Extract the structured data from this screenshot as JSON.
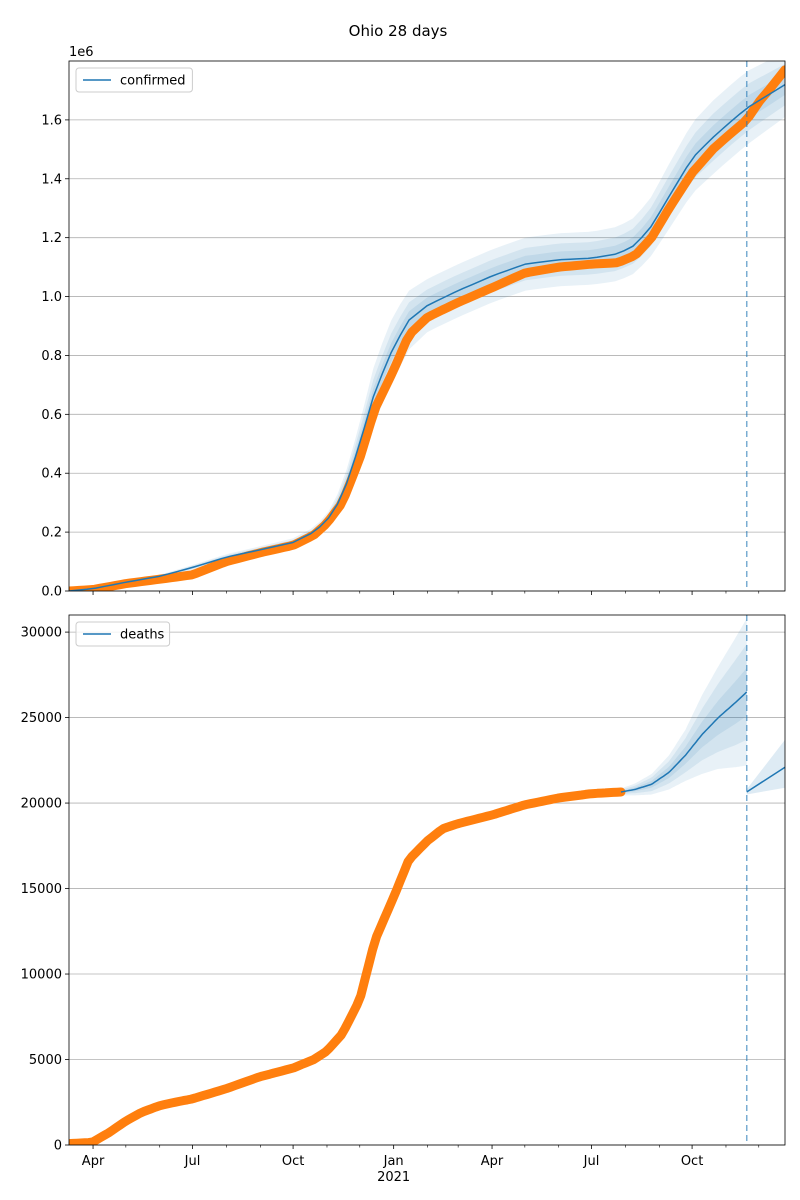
{
  "figure": {
    "title": "Ohio 28 days"
  },
  "chart_data": [
    {
      "type": "line",
      "panel": "top",
      "legend_label": "confirmed",
      "legend_position": "upper-left",
      "offset_text": "1e6",
      "grid": "horizontal",
      "xlim": [
        "2020-03-10",
        "2021-12-25"
      ],
      "ylim": [
        0,
        1800000
      ],
      "yticks": [
        0,
        200000,
        400000,
        600000,
        800000,
        1000000,
        1200000,
        1400000,
        1600000
      ],
      "ytick_labels": [
        "0.0",
        "0.2",
        "0.4",
        "0.6",
        "0.8",
        "1.0",
        "1.2",
        "1.4",
        "1.6"
      ],
      "forecast_start": "2021-11-20",
      "model_series": {
        "name": "confirmed",
        "color": "#1f77b4",
        "x": [
          "2020-03-10",
          "2020-04-01",
          "2020-05-01",
          "2020-06-01",
          "2020-07-01",
          "2020-08-01",
          "2020-09-01",
          "2020-10-01",
          "2020-10-20",
          "2020-11-01",
          "2020-11-15",
          "2020-12-01",
          "2020-12-15",
          "2021-01-01",
          "2021-01-15",
          "2021-02-01",
          "2021-03-01",
          "2021-04-01",
          "2021-05-01",
          "2021-06-01",
          "2021-07-01",
          "2021-07-25",
          "2021-08-10",
          "2021-08-25",
          "2021-09-10",
          "2021-10-01",
          "2021-10-20",
          "2021-11-01",
          "2021-11-20",
          "2021-12-25"
        ],
        "y": [
          0,
          8000,
          30000,
          50000,
          80000,
          115000,
          140000,
          165000,
          200000,
          240000,
          320000,
          500000,
          680000,
          830000,
          920000,
          970000,
          1020000,
          1070000,
          1110000,
          1125000,
          1130000,
          1145000,
          1175000,
          1240000,
          1340000,
          1470000,
          1540000,
          1580000,
          1640000,
          1720000
        ],
        "band_halfwidths": [
          [
            0,
            1000,
            3000,
            5000,
            8000,
            10000,
            12000,
            14000,
            16000,
            20000,
            40000,
            70000,
            100000,
            110000,
            100000,
            90000,
            90000,
            90000,
            90000,
            90000,
            90000,
            92000,
            95000,
            100000,
            110000,
            120000,
            125000,
            125000,
            125000,
            110000
          ],
          [
            0,
            500,
            1500,
            3000,
            5000,
            6000,
            7000,
            8000,
            9000,
            12000,
            25000,
            45000,
            60000,
            65000,
            60000,
            55000,
            55000,
            55000,
            55000,
            55000,
            55000,
            57000,
            60000,
            65000,
            70000,
            75000,
            80000,
            80000,
            80000,
            70000
          ],
          [
            0,
            200,
            700,
            1500,
            2500,
            3000,
            3500,
            4000,
            5000,
            6000,
            12000,
            22000,
            30000,
            32000,
            30000,
            28000,
            28000,
            28000,
            28000,
            28000,
            28000,
            29000,
            30000,
            33000,
            35000,
            38000,
            40000,
            40000,
            40000,
            35000
          ]
        ]
      },
      "observed_series": {
        "name": "observed",
        "color": "#ff7f0e",
        "x": [
          "2020-03-10",
          "2020-04-01",
          "2020-05-01",
          "2020-06-01",
          "2020-07-01",
          "2020-08-01",
          "2020-09-01",
          "2020-10-01",
          "2020-10-20",
          "2020-11-01",
          "2020-11-15",
          "2020-12-01",
          "2020-12-15",
          "2021-01-01",
          "2021-01-15",
          "2021-02-01",
          "2021-03-01",
          "2021-04-01",
          "2021-05-01",
          "2021-06-01",
          "2021-07-01",
          "2021-07-25",
          "2021-08-10",
          "2021-08-25",
          "2021-09-10",
          "2021-10-01",
          "2021-10-20",
          "2021-11-01",
          "2021-11-20",
          "2021-12-01",
          "2021-12-10",
          "2021-12-25"
        ],
        "y": [
          0,
          5000,
          25000,
          40000,
          55000,
          100000,
          130000,
          155000,
          190000,
          230000,
          300000,
          450000,
          620000,
          750000,
          870000,
          930000,
          980000,
          1030000,
          1080000,
          1100000,
          1110000,
          1115000,
          1140000,
          1200000,
          1300000,
          1420000,
          1500000,
          1540000,
          1600000,
          1660000,
          1700000,
          1770000
        ]
      }
    },
    {
      "type": "line",
      "panel": "bottom",
      "legend_label": "deaths",
      "legend_position": "upper-left",
      "grid": "horizontal",
      "xlim": [
        "2020-03-10",
        "2021-12-25"
      ],
      "ylim": [
        0,
        31000
      ],
      "yticks": [
        0,
        5000,
        10000,
        15000,
        20000,
        25000,
        30000
      ],
      "ytick_labels": [
        "0",
        "5000",
        "10000",
        "15000",
        "20000",
        "25000",
        "30000"
      ],
      "forecast_start": "2021-11-20",
      "model_series": {
        "name": "deaths",
        "color": "#1f77b4",
        "x": [
          "2021-07-28",
          "2021-08-10",
          "2021-08-25",
          "2021-09-10",
          "2021-09-25",
          "2021-10-10",
          "2021-10-25",
          "2021-11-10",
          "2021-11-20"
        ],
        "y": [
          20650,
          20800,
          21100,
          21800,
          22800,
          24000,
          25000,
          25900,
          26500
        ],
        "band_halfwidths": [
          [
            200,
            350,
            600,
            1000,
            1500,
            2300,
            3000,
            3800,
            4300
          ],
          [
            120,
            220,
            400,
            650,
            1000,
            1500,
            2000,
            2500,
            2800
          ],
          [
            60,
            110,
            200,
            330,
            500,
            750,
            1000,
            1250,
            1400
          ]
        ]
      },
      "restart_series": {
        "x": [
          "2021-11-20",
          "2021-12-25"
        ],
        "y": [
          20650,
          22100
        ],
        "band_upper": [
          20800,
          23700
        ],
        "band_lower": [
          20500,
          20900
        ]
      },
      "observed_series": {
        "name": "observed",
        "color": "#ff7f0e",
        "x": [
          "2020-03-10",
          "2020-03-31",
          "2020-04-15",
          "2020-05-01",
          "2020-05-15",
          "2020-06-01",
          "2020-06-15",
          "2020-07-01",
          "2020-08-01",
          "2020-09-01",
          "2020-10-01",
          "2020-10-20",
          "2020-11-01",
          "2020-11-15",
          "2020-12-01",
          "2020-12-15",
          "2021-01-01",
          "2021-01-15",
          "2021-02-01",
          "2021-02-15",
          "2021-03-01",
          "2021-04-01",
          "2021-05-01",
          "2021-06-01",
          "2021-07-01",
          "2021-07-28"
        ],
        "y": [
          80,
          150,
          700,
          1400,
          1900,
          2300,
          2500,
          2700,
          3300,
          4000,
          4500,
          5000,
          5500,
          6500,
          8500,
          12000,
          14500,
          16700,
          17800,
          18500,
          18800,
          19300,
          19900,
          20300,
          20550,
          20650
        ]
      }
    }
  ],
  "x_axis": {
    "tick_labels": [
      "Apr",
      "Jul",
      "Oct",
      "Jan",
      "Apr",
      "Jul",
      "Oct"
    ],
    "tick_dates": [
      "2020-04-01",
      "2020-07-01",
      "2020-10-01",
      "2021-01-01",
      "2021-04-01",
      "2021-07-01",
      "2021-10-01"
    ],
    "year_label": "2021",
    "year_label_date": "2021-01-01",
    "minor_dates": [
      "2020-05-01",
      "2020-06-01",
      "2020-08-01",
      "2020-09-01",
      "2020-11-01",
      "2020-12-01",
      "2021-02-01",
      "2021-03-01",
      "2021-05-01",
      "2021-06-01",
      "2021-08-01",
      "2021-09-01",
      "2021-11-01",
      "2021-12-01"
    ]
  }
}
